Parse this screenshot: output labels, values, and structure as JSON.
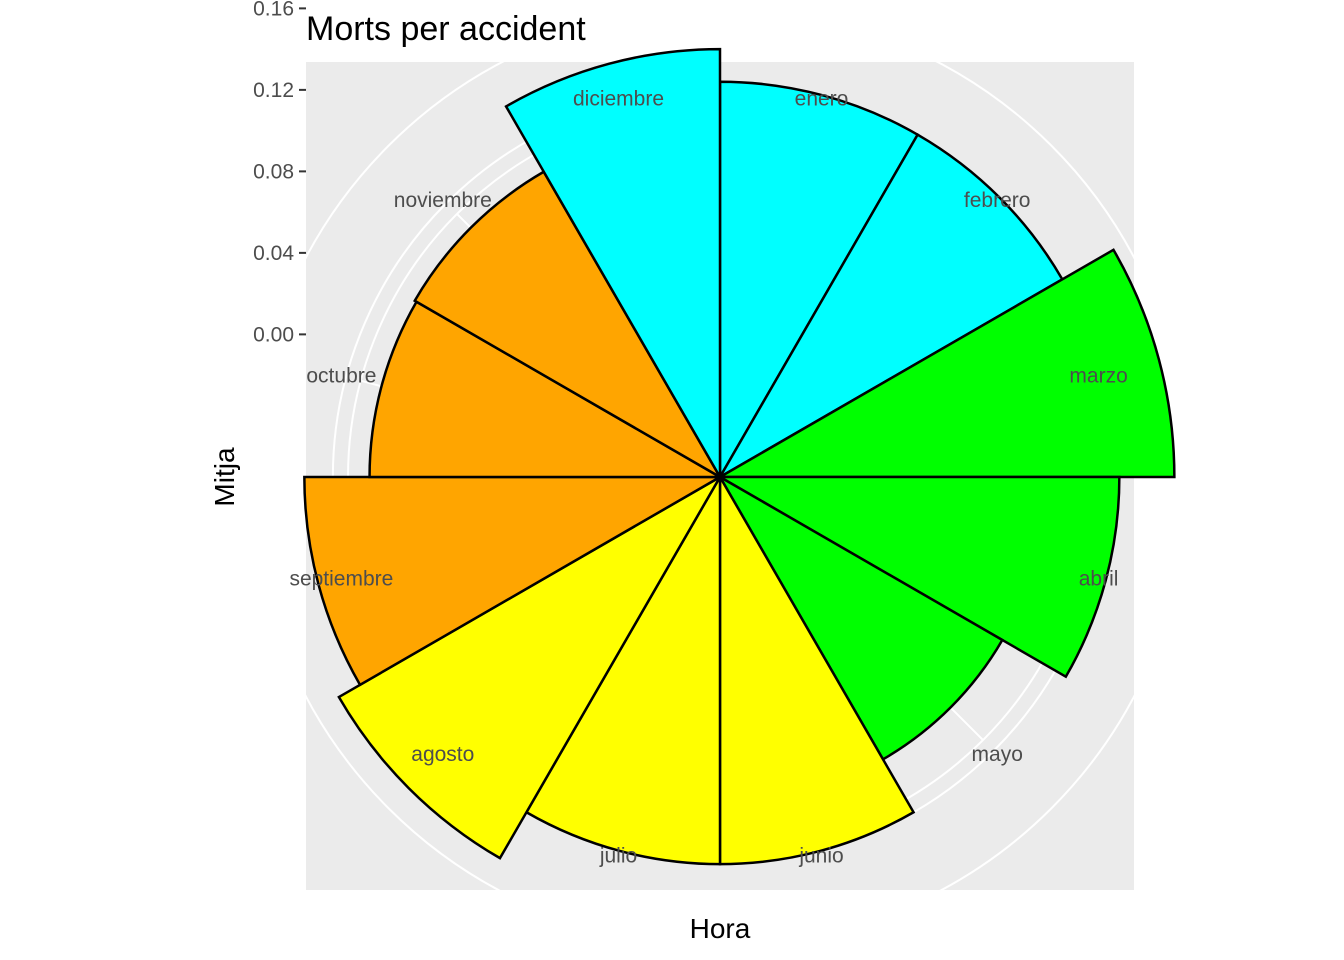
{
  "chart_data": {
    "type": "bar",
    "polar": true,
    "title": "Morts per accident",
    "xlabel": "Hora",
    "ylabel": "Mitja",
    "categories": [
      "enero",
      "febrero",
      "marzo",
      "abril",
      "mayo",
      "junio",
      "julio",
      "agosto",
      "septiembre",
      "octubre",
      "noviembre",
      "diciembre"
    ],
    "values": [
      0.124,
      0.124,
      0.153,
      0.126,
      0.09,
      0.12,
      0.12,
      0.146,
      0.134,
      0.102,
      0.103,
      0.14
    ],
    "colors": [
      "#00ffff",
      "#00ffff",
      "#00ff00",
      "#00ff00",
      "#00ff00",
      "#ffff00",
      "#ffff00",
      "#ffff00",
      "#ffa500",
      "#ffa500",
      "#ffa500",
      "#00ffff"
    ],
    "y_ticks": [
      "0.00",
      "0.04",
      "0.08",
      "0.12",
      "0.16"
    ],
    "y_tick_values": [
      0,
      0.04,
      0.08,
      0.12,
      0.16
    ],
    "ylim": [
      -0.07,
      0.16
    ],
    "grid": true,
    "panel_color": "#ebebeb",
    "grid_color": "#ffffff",
    "outline_color": "#000000"
  }
}
